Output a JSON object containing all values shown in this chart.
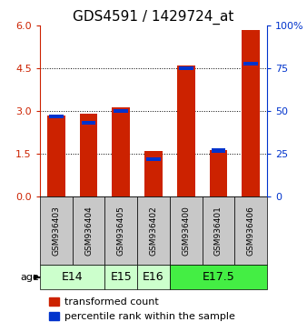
{
  "title": "GDS4591 / 1429724_at",
  "samples": [
    "GSM936403",
    "GSM936404",
    "GSM936405",
    "GSM936402",
    "GSM936400",
    "GSM936401",
    "GSM936406"
  ],
  "transformed_counts": [
    2.85,
    2.9,
    3.15,
    1.6,
    4.6,
    1.65,
    5.85
  ],
  "percentile_ranks": [
    47,
    43,
    50,
    22,
    75,
    27,
    78
  ],
  "age_groups": [
    {
      "label": "E14",
      "spans": [
        0,
        1
      ],
      "color": "#ccffcc"
    },
    {
      "label": "E15",
      "spans": [
        2,
        2
      ],
      "color": "#ccffcc"
    },
    {
      "label": "E16",
      "spans": [
        3,
        3
      ],
      "color": "#ccffcc"
    },
    {
      "label": "E17.5",
      "spans": [
        4,
        6
      ],
      "color": "#44ee44"
    }
  ],
  "ylim_left": [
    0,
    6
  ],
  "yticks_left": [
    0,
    1.5,
    3.0,
    4.5,
    6
  ],
  "ylim_right": [
    0,
    100
  ],
  "yticks_right": [
    0,
    25,
    50,
    75,
    100
  ],
  "grid_values": [
    1.5,
    3.0,
    4.5
  ],
  "bar_color_red": "#cc2200",
  "bar_color_blue": "#0033cc",
  "bar_width": 0.55,
  "background_plot": "#ffffff",
  "background_sample": "#c8c8c8",
  "title_fontsize": 11,
  "tick_fontsize": 8,
  "legend_fontsize": 8,
  "age_label_fontsize": 9,
  "left_tick_color": "#cc2200",
  "right_tick_color": "#0033cc"
}
